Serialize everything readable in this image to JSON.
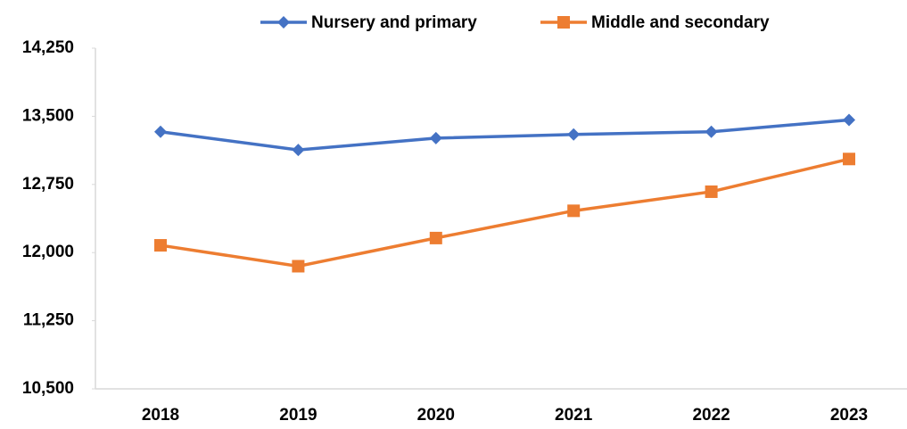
{
  "chart_data": {
    "type": "line",
    "categories": [
      "2018",
      "2019",
      "2020",
      "2021",
      "2022",
      "2023"
    ],
    "series": [
      {
        "name": "Nursery and primary",
        "color": "#4472c4",
        "marker": "diamond",
        "values": [
          13330,
          13130,
          13260,
          13300,
          13330,
          13460
        ]
      },
      {
        "name": "Middle and secondary",
        "color": "#ed7d31",
        "marker": "square",
        "values": [
          12080,
          11850,
          12160,
          12460,
          12670,
          13030
        ]
      }
    ],
    "ylim": [
      10500,
      14250
    ],
    "yticks": [
      {
        "value": 10500,
        "label": "10,500"
      },
      {
        "value": 11250,
        "label": "11,250"
      },
      {
        "value": 12000,
        "label": "12,000"
      },
      {
        "value": 12750,
        "label": "12,750"
      },
      {
        "value": 13500,
        "label": "13,500"
      },
      {
        "value": 14250,
        "label": "14,250"
      }
    ],
    "grid": false,
    "legend": "top"
  }
}
